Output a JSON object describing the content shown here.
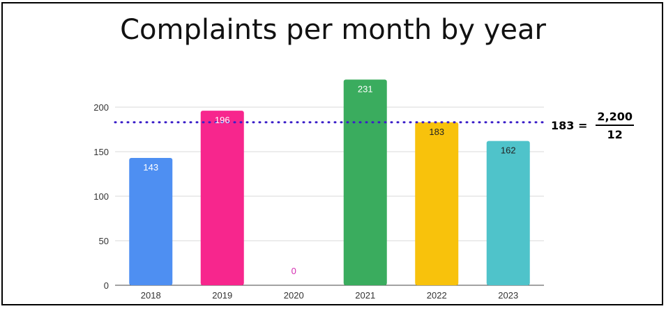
{
  "chart_data": {
    "type": "bar",
    "title": "Complaints per month by year",
    "xlabel": "",
    "ylabel": "",
    "categories": [
      "2018",
      "2019",
      "2020",
      "2021",
      "2022",
      "2023"
    ],
    "values": [
      143,
      196,
      0,
      231,
      183,
      162
    ],
    "value_labels": [
      "143",
      "196",
      "0",
      "231",
      "183",
      "162"
    ],
    "colors": [
      "#4e8ff2",
      "#f7268d",
      "#d42bb0",
      "#3aac5e",
      "#f8c20c",
      "#4fc3ca"
    ],
    "label_colors": [
      "#ffffff",
      "#ffffff",
      "#d42bb0",
      "#ffffff",
      "#222222",
      "#222222"
    ],
    "ylim": [
      0,
      240
    ],
    "yticks": [
      0,
      50,
      100,
      150,
      200
    ],
    "ytick_labels": [
      "0",
      "50",
      "100",
      "150",
      "200"
    ],
    "grid": true,
    "reference_line": {
      "value": 183,
      "color": "#3b1fc8",
      "style": "dotted"
    },
    "annotation": {
      "lhs": "183 =",
      "numerator": "2,200",
      "denominator": "12"
    }
  }
}
